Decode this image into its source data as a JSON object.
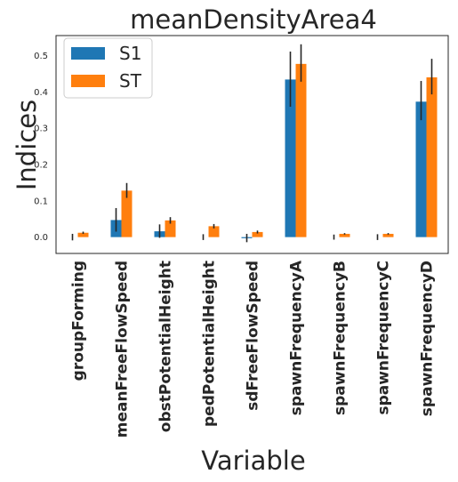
{
  "chart_data": {
    "type": "bar",
    "title": "meanDensityArea4",
    "xlabel": "Variable",
    "ylabel": "Indices",
    "categories": [
      "groupForming",
      "meanFreeFlowSpeed",
      "obstPotentialHeight",
      "pedPotentialHeight",
      "sdFreeFlowSpeed",
      "spawnFrequencyA",
      "spawnFrequencyB",
      "spawnFrequencyC",
      "spawnFrequencyD"
    ],
    "series": [
      {
        "name": "S1",
        "color": "#1f77b4",
        "values": [
          0.0,
          0.047,
          0.016,
          0.0,
          -0.003,
          0.434,
          0.0,
          0.0,
          0.373
        ],
        "error_low": [
          -0.009,
          0.015,
          -0.002,
          -0.008,
          -0.014,
          0.359,
          -0.007,
          -0.008,
          0.322
        ],
        "error_high": [
          0.009,
          0.08,
          0.035,
          0.008,
          0.009,
          0.511,
          0.007,
          0.008,
          0.43
        ]
      },
      {
        "name": "ST",
        "color": "#ff7f0e",
        "values": [
          0.012,
          0.128,
          0.046,
          0.03,
          0.014,
          0.477,
          0.009,
          0.009,
          0.44
        ],
        "error_low": [
          0.009,
          0.108,
          0.037,
          0.024,
          0.01,
          0.428,
          0.007,
          0.007,
          0.393
        ],
        "error_high": [
          0.015,
          0.149,
          0.055,
          0.036,
          0.018,
          0.531,
          0.011,
          0.011,
          0.491
        ]
      }
    ],
    "yticks": [
      "0.0",
      "0.1",
      "0.2",
      "0.3",
      "0.4",
      "0.5"
    ],
    "ylim": [
      -0.045,
      0.555
    ],
    "grid": false,
    "legend": "upper-left"
  }
}
